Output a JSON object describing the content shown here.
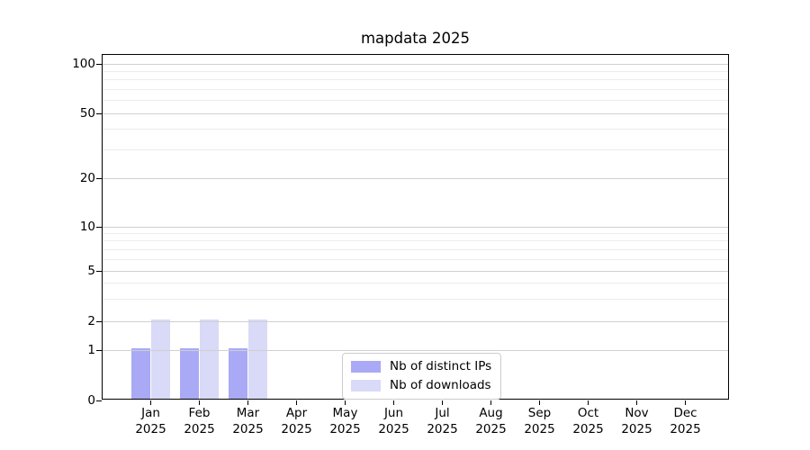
{
  "figure": {
    "background": "#ffffff"
  },
  "chart_data": {
    "type": "bar",
    "title": "mapdata 2025",
    "categories": [
      "Jan 2025",
      "Feb 2025",
      "Mar 2025",
      "Apr 2025",
      "May 2025",
      "Jun 2025",
      "Jul 2025",
      "Aug 2025",
      "Sep 2025",
      "Oct 2025",
      "Nov 2025",
      "Dec 2025"
    ],
    "months": [
      "Jan",
      "Feb",
      "Mar",
      "Apr",
      "May",
      "Jun",
      "Jul",
      "Aug",
      "Sep",
      "Oct",
      "Nov",
      "Dec"
    ],
    "year": "2025",
    "series": [
      {
        "name": "Nb of distinct IPs",
        "color": "#a9a9f6",
        "values": [
          1,
          1,
          1,
          0,
          0,
          0,
          0,
          0,
          0,
          0,
          0,
          0
        ]
      },
      {
        "name": "Nb of downloads",
        "color": "#d9d9f8",
        "values": [
          2,
          2,
          2,
          0,
          0,
          0,
          0,
          0,
          0,
          0,
          0,
          0
        ]
      }
    ],
    "xlabel": "",
    "ylabel": "",
    "yscale": "log-like (0,1,2,5,10,20,50,100)",
    "y_major_ticks": [
      0,
      1,
      2,
      5,
      10,
      20,
      50,
      100
    ],
    "y_minor_ticks": [
      3,
      4,
      6,
      7,
      8,
      9,
      30,
      40,
      60,
      70,
      80,
      90
    ],
    "ylim": [
      0,
      115
    ],
    "grid": "horizontal major and minor gridlines",
    "legend_position": "lower center",
    "colors": {
      "grid_major": "#d0d0d0",
      "grid_minor": "#ececec",
      "axis": "#000000"
    }
  }
}
